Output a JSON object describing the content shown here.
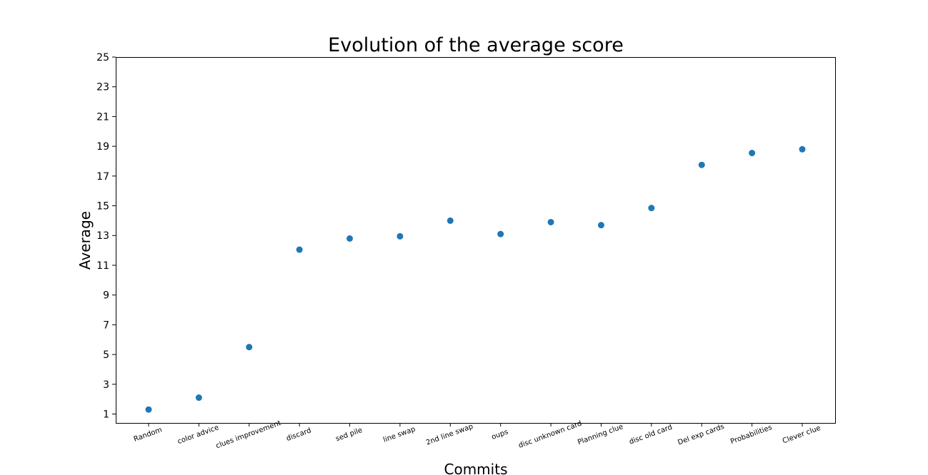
{
  "chart_data": {
    "type": "scatter",
    "title": "Evolution of the average score",
    "xlabel": "Commits",
    "ylabel": "Average",
    "categories": [
      "Random",
      "color advice",
      "clues improvement",
      "discard",
      "sed pile",
      "line swap",
      "2nd line swap",
      "oups",
      "disc unknown card",
      "Planning clue",
      "disc old card",
      "Del exp cards",
      "Probabilities",
      "Clever clue"
    ],
    "values": [
      1.3,
      2.1,
      5.5,
      12.05,
      12.8,
      12.95,
      14.0,
      13.1,
      13.9,
      13.7,
      14.85,
      17.75,
      18.55,
      18.8
    ],
    "ylim": [
      0.4,
      25
    ],
    "yticks": [
      1,
      3,
      5,
      7,
      9,
      11,
      13,
      15,
      17,
      19,
      21,
      23,
      25
    ],
    "grid": false,
    "legend": "none",
    "point_color": "#1f77b4"
  }
}
